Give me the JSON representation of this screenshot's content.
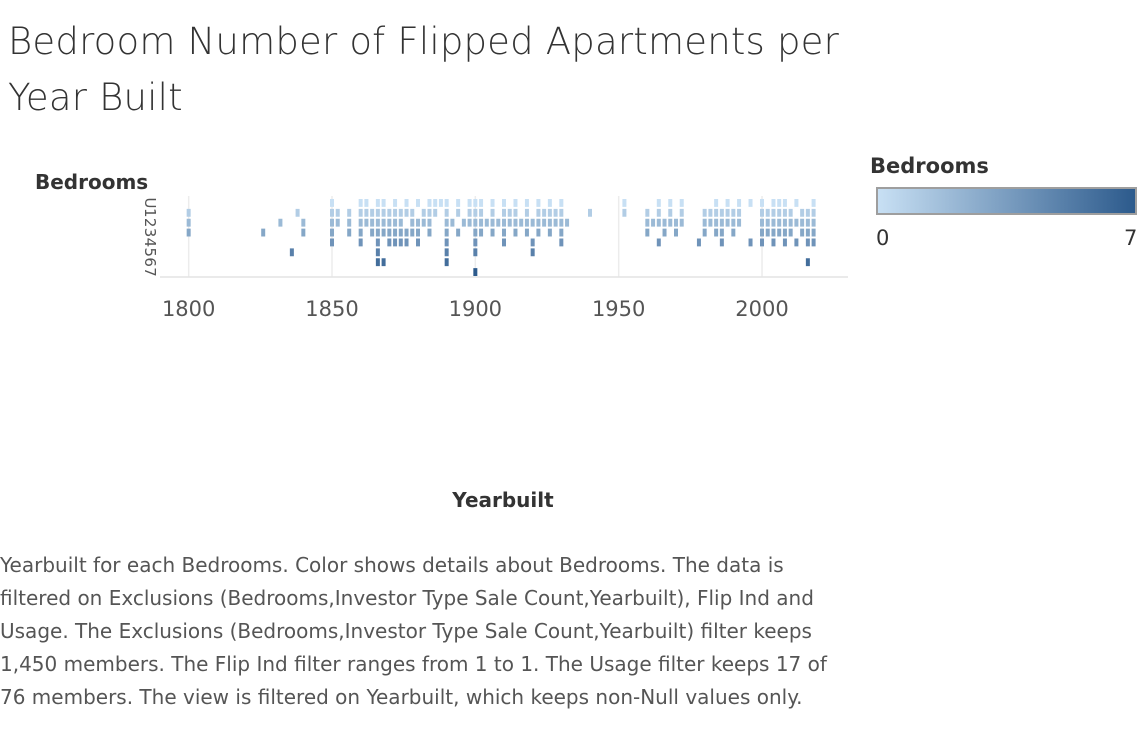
{
  "title": "Bedroom Number of Flipped Apartments per Year Built",
  "legend": {
    "title": "Bedrooms",
    "min_label": "0",
    "max_label": "7",
    "color_low": "#c8e0f4",
    "color_high": "#2c5a8c"
  },
  "caption": "Yearbuilt for each Bedrooms.  Color shows details about Bedrooms. The data is filtered on Exclusions (Bedrooms,Investor Type Sale Count,Yearbuilt), Flip Ind and Usage. The Exclusions (Bedrooms,Investor Type Sale Count,Yearbuilt) filter keeps 1,450 members. The Flip Ind filter ranges from 1 to 1. The Usage filter keeps 17 of 76 members. The view is filtered on Yearbuilt, which keeps non-Null values only.",
  "chart_data": {
    "type": "heatmap",
    "title": "Bedroom Number of Flipped Apartments per Year Built",
    "xlabel": "Yearbuilt",
    "ylabel": "Bedrooms",
    "xlim": [
      1790,
      2030
    ],
    "x_ticks": [
      1800,
      1850,
      1900,
      1950,
      2000
    ],
    "y_categories": [
      "U",
      "1",
      "2",
      "3",
      "4",
      "5",
      "6",
      "7"
    ],
    "color_scale": {
      "field": "Bedrooms",
      "min": 0,
      "max": 7
    },
    "grid": true,
    "legend_position": "top-right",
    "rows": [
      {
        "bedrooms": "U",
        "years": [
          1850,
          1860,
          1862,
          1866,
          1868,
          1872,
          1876,
          1880,
          1884,
          1886,
          1888,
          1890,
          1894,
          1898,
          1900,
          1902,
          1906,
          1910,
          1914,
          1918,
          1922,
          1926,
          1930,
          1952,
          1964,
          1968,
          1972,
          1984,
          1988,
          1992,
          1996,
          2000,
          2004,
          2006,
          2008,
          2012,
          2018
        ]
      },
      {
        "bedrooms": "1",
        "years": [
          1800,
          1838,
          1850,
          1852,
          1856,
          1860,
          1862,
          1864,
          1866,
          1868,
          1870,
          1872,
          1874,
          1876,
          1878,
          1882,
          1884,
          1886,
          1890,
          1894,
          1898,
          1900,
          1902,
          1906,
          1910,
          1912,
          1914,
          1918,
          1922,
          1924,
          1926,
          1928,
          1930,
          1940,
          1952,
          1960,
          1964,
          1968,
          1972,
          1980,
          1982,
          1984,
          1986,
          1988,
          1990,
          1992,
          2000,
          2002,
          2004,
          2006,
          2008,
          2010,
          2014,
          2016,
          2018
        ]
      },
      {
        "bedrooms": "2",
        "years": [
          1800,
          1832,
          1840,
          1850,
          1852,
          1856,
          1860,
          1862,
          1864,
          1866,
          1868,
          1870,
          1872,
          1874,
          1878,
          1880,
          1882,
          1884,
          1890,
          1892,
          1896,
          1898,
          1900,
          1902,
          1904,
          1906,
          1908,
          1910,
          1912,
          1914,
          1916,
          1918,
          1920,
          1922,
          1924,
          1926,
          1928,
          1930,
          1932,
          1960,
          1962,
          1964,
          1966,
          1968,
          1970,
          1972,
          1980,
          1982,
          1984,
          1986,
          1988,
          1990,
          1992,
          2000,
          2002,
          2004,
          2006,
          2008,
          2010,
          2012,
          2014,
          2016,
          2018
        ]
      },
      {
        "bedrooms": "3",
        "years": [
          1800,
          1826,
          1840,
          1850,
          1856,
          1860,
          1864,
          1866,
          1868,
          1870,
          1872,
          1874,
          1876,
          1878,
          1880,
          1884,
          1890,
          1894,
          1900,
          1902,
          1906,
          1910,
          1914,
          1918,
          1922,
          1926,
          1930,
          1960,
          1966,
          1970,
          1980,
          1984,
          1986,
          1990,
          2000,
          2002,
          2004,
          2006,
          2008,
          2010,
          2014,
          2016,
          2018
        ]
      },
      {
        "bedrooms": "4",
        "years": [
          1850,
          1860,
          1866,
          1870,
          1872,
          1874,
          1876,
          1880,
          1890,
          1900,
          1910,
          1920,
          1930,
          1964,
          1978,
          1986,
          1996,
          2000,
          2004,
          2008,
          2012,
          2016,
          2018
        ]
      },
      {
        "bedrooms": "5",
        "years": [
          1836,
          1866,
          1890,
          1900,
          1920
        ]
      },
      {
        "bedrooms": "6",
        "years": [
          1866,
          1868,
          1890,
          2016
        ]
      },
      {
        "bedrooms": "7",
        "years": [
          1900
        ]
      }
    ]
  }
}
